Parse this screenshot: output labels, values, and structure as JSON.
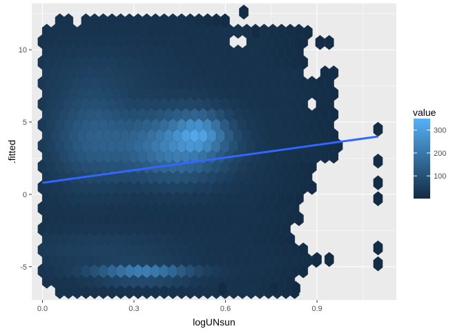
{
  "chart_data": {
    "type": "hexbin",
    "xlabel": "logUNsun",
    "ylabel": ".fitted",
    "xlim": [
      -0.035,
      1.16
    ],
    "ylim": [
      -7.3,
      13.2
    ],
    "x_ticks": [
      {
        "value": 0.0,
        "label": "0.0"
      },
      {
        "value": 0.3,
        "label": "0.3"
      },
      {
        "value": 0.6,
        "label": "0.6"
      },
      {
        "value": 0.9,
        "label": "0.9"
      }
    ],
    "y_ticks": [
      {
        "value": -5,
        "label": "-5"
      },
      {
        "value": 0,
        "label": "0"
      },
      {
        "value": 5,
        "label": "5"
      },
      {
        "value": 10,
        "label": "10"
      }
    ],
    "grid": true,
    "background": "#ebebeb",
    "fill_scale": {
      "name": "value",
      "min": 1,
      "max": 350,
      "low_color": "#132b43",
      "high_color": "#56b1f7",
      "breaks": [
        100,
        200,
        300
      ],
      "break_labels": [
        "100",
        "200",
        "300"
      ],
      "legend_position": "right"
    },
    "hex_grid": {
      "x_origin": 0.0,
      "x_step": 0.0285,
      "y_origin": -6.0,
      "y_step": 0.72
    },
    "trend_line": {
      "method": "lm",
      "color": "#3366ff",
      "points": [
        [
          0.0,
          0.8
        ],
        [
          1.1,
          4.0
        ]
      ]
    },
    "outlier_hexes": [
      {
        "x": 1.1,
        "y": 4.5,
        "value": 5
      },
      {
        "x": 1.1,
        "y": 2.3,
        "value": 5
      },
      {
        "x": 1.1,
        "y": 0.8,
        "value": 5
      },
      {
        "x": 1.1,
        "y": -0.3,
        "value": 3
      },
      {
        "x": 1.1,
        "y": -3.7,
        "value": 3
      },
      {
        "x": 1.1,
        "y": -4.8,
        "value": 4
      }
    ]
  }
}
